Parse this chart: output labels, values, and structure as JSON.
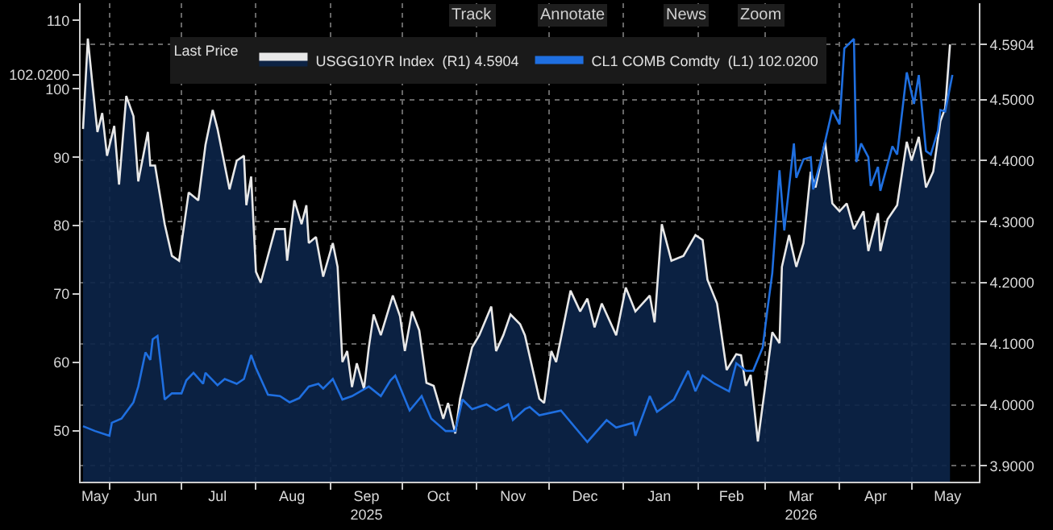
{
  "chart_data": {
    "type": "line",
    "legend_title": "Last Price",
    "legend": "top",
    "grid": true,
    "annotations": [
      "Track",
      "Annotate",
      "News",
      "Zoom"
    ],
    "xlim": [
      "2025-05-20",
      "2026-05-29"
    ],
    "xticks": [
      {
        "value": "2025-05-26",
        "label": "May"
      },
      {
        "value": "2025-06-16",
        "label": "Jun"
      },
      {
        "value": "2025-07-16",
        "label": "Jul"
      },
      {
        "value": "2025-08-16",
        "label": "Aug"
      },
      {
        "value": "2025-09-16",
        "label": "Sep\n2025"
      },
      {
        "value": "2025-10-16",
        "label": "Oct"
      },
      {
        "value": "2025-11-16",
        "label": "Nov"
      },
      {
        "value": "2025-12-16",
        "label": "Dec"
      },
      {
        "value": "2026-01-16",
        "label": "Jan"
      },
      {
        "value": "2026-02-15",
        "label": "Feb"
      },
      {
        "value": "2026-03-16",
        "label": "Mar\n2026"
      },
      {
        "value": "2026-04-16",
        "label": "Apr"
      },
      {
        "value": "2026-05-16",
        "label": "May"
      }
    ],
    "ylim": [
      42.6,
      112.5
    ],
    "yticks": [
      50,
      60,
      70,
      80,
      90,
      100,
      {
        "value": 102.02,
        "label": "102.0200"
      },
      110
    ],
    "y2lim": [
      3.874,
      4.658
    ],
    "y2ticks": [
      {
        "value": 3.9,
        "label": "3.9000"
      },
      {
        "value": 4.0,
        "label": "4.0000"
      },
      {
        "value": 4.1,
        "label": "4.1000"
      },
      {
        "value": 4.2,
        "label": "4.2000"
      },
      {
        "value": 4.3,
        "label": "4.3000"
      },
      {
        "value": 4.4,
        "label": "4.4000"
      },
      {
        "value": 4.5,
        "label": "4.5000"
      },
      {
        "value": 4.5904,
        "label": "4.5904"
      }
    ],
    "series": [
      {
        "name": "USGG10YR Index  (R1) 4.5904",
        "type": "area",
        "axis": "y2",
        "color": "#e8e8e8",
        "x": [
          "2025-05-21",
          "2025-05-23",
          "2025-05-25",
          "2025-05-27",
          "2025-05-29",
          "2025-05-31",
          "2025-06-03",
          "2025-06-05",
          "2025-06-08",
          "2025-06-11",
          "2025-06-13",
          "2025-06-17",
          "2025-06-18",
          "2025-06-20",
          "2025-06-24",
          "2025-06-27",
          "2025-06-30",
          "2025-07-04",
          "2025-07-08",
          "2025-07-11",
          "2025-07-14",
          "2025-07-16",
          "2025-07-21",
          "2025-07-24",
          "2025-07-27",
          "2025-07-28",
          "2025-07-30",
          "2025-08-01",
          "2025-08-03",
          "2025-08-09",
          "2025-08-13",
          "2025-08-14",
          "2025-08-17",
          "2025-08-20",
          "2025-08-22",
          "2025-08-23",
          "2025-08-26",
          "2025-08-29",
          "2025-09-02",
          "2025-09-04",
          "2025-09-06",
          "2025-09-08",
          "2025-09-10",
          "2025-09-12",
          "2025-09-15",
          "2025-09-17",
          "2025-09-19",
          "2025-09-22",
          "2025-09-27",
          "2025-09-30",
          "2025-10-02",
          "2025-10-05",
          "2025-10-08",
          "2025-10-11",
          "2025-10-14",
          "2025-10-18",
          "2025-10-20",
          "2025-10-23",
          "2025-10-25",
          "2025-10-30",
          "2025-11-02",
          "2025-11-07",
          "2025-11-09",
          "2025-11-12",
          "2025-11-15",
          "2025-11-19",
          "2025-11-21",
          "2025-11-27",
          "2025-11-29",
          "2025-12-02",
          "2025-12-04",
          "2025-12-10",
          "2025-12-14",
          "2025-12-17",
          "2025-12-20",
          "2025-12-23",
          "2025-12-29",
          "2026-01-02",
          "2026-01-06",
          "2026-01-12",
          "2026-01-14",
          "2026-01-17",
          "2026-01-21",
          "2026-01-26",
          "2026-01-31",
          "2026-02-03",
          "2026-02-05",
          "2026-02-09",
          "2026-02-13",
          "2026-02-17",
          "2026-02-19",
          "2026-02-21",
          "2026-02-23",
          "2026-02-26",
          "2026-03-01",
          "2026-03-04",
          "2026-03-07",
          "2026-03-08",
          "2026-03-11",
          "2026-03-14",
          "2026-03-17",
          "2026-03-20",
          "2026-03-22",
          "2026-03-26",
          "2026-03-29",
          "2026-04-01",
          "2026-04-04",
          "2026-04-07",
          "2026-04-11",
          "2026-04-13",
          "2026-04-17",
          "2026-04-18",
          "2026-04-21",
          "2026-04-25",
          "2026-04-29",
          "2026-05-01",
          "2026-05-04",
          "2026-05-07",
          "2026-05-10",
          "2026-05-13",
          "2026-05-15",
          "2026-05-17"
        ],
        "values": [
          4.452,
          4.6,
          4.522,
          4.447,
          4.478,
          4.408,
          4.457,
          4.361,
          4.506,
          4.473,
          4.366,
          4.447,
          4.392,
          4.392,
          4.296,
          4.244,
          4.236,
          4.348,
          4.335,
          4.426,
          4.483,
          4.452,
          4.353,
          4.4,
          4.408,
          4.327,
          4.374,
          4.218,
          4.2,
          4.288,
          4.288,
          4.236,
          4.335,
          4.296,
          4.327,
          4.265,
          4.275,
          4.21,
          4.265,
          4.226,
          4.07,
          4.088,
          4.029,
          4.068,
          4.026,
          4.094,
          4.148,
          4.114,
          4.179,
          4.145,
          4.088,
          4.153,
          4.122,
          4.036,
          4.031,
          3.977,
          4.003,
          3.953,
          4.01,
          4.094,
          4.114,
          4.161,
          4.088,
          4.114,
          4.148,
          4.132,
          4.114,
          4.01,
          4.003,
          4.088,
          4.07,
          4.187,
          4.153,
          4.174,
          4.127,
          4.166,
          4.114,
          4.192,
          4.153,
          4.179,
          4.135,
          4.296,
          4.236,
          4.244,
          4.278,
          4.27,
          4.205,
          4.166,
          4.057,
          4.083,
          4.081,
          4.031,
          4.049,
          3.94,
          4.029,
          4.119,
          4.101,
          4.226,
          4.278,
          4.226,
          4.265,
          4.382,
          4.356,
          4.431,
          4.33,
          4.317,
          4.33,
          4.288,
          4.317,
          4.252,
          4.314,
          4.252,
          4.304,
          4.327,
          4.431,
          4.4,
          4.439,
          4.356,
          4.382,
          4.465,
          4.486,
          4.5904
        ]
      },
      {
        "name": "CL1 COMB Comdty  (L1) 102.0200",
        "axis": "y",
        "color": "#1f6fe0",
        "x": [
          "2025-05-21",
          "2025-05-26",
          "2025-06-01",
          "2025-06-02",
          "2025-06-06",
          "2025-06-11",
          "2025-06-13",
          "2025-06-16",
          "2025-06-18",
          "2025-06-19",
          "2025-06-21",
          "2025-06-24",
          "2025-06-27",
          "2025-07-01",
          "2025-07-03",
          "2025-07-06",
          "2025-07-10",
          "2025-07-11",
          "2025-07-16",
          "2025-07-19",
          "2025-07-24",
          "2025-07-27",
          "2025-07-30",
          "2025-08-01",
          "2025-08-06",
          "2025-08-11",
          "2025-08-15",
          "2025-08-19",
          "2025-08-23",
          "2025-08-27",
          "2025-08-29",
          "2025-09-02",
          "2025-09-06",
          "2025-09-10",
          "2025-09-17",
          "2025-09-22",
          "2025-09-26",
          "2025-09-28",
          "2025-10-04",
          "2025-10-09",
          "2025-10-13",
          "2025-10-19",
          "2025-10-23",
          "2025-10-26",
          "2025-10-30",
          "2025-11-05",
          "2025-11-09",
          "2025-11-14",
          "2025-11-16",
          "2025-11-21",
          "2025-11-23",
          "2025-11-27",
          "2025-12-06",
          "2025-12-17",
          "2025-12-25",
          "2025-12-29",
          "2026-01-05",
          "2026-01-06",
          "2026-01-12",
          "2026-01-15",
          "2026-01-22",
          "2026-01-28",
          "2026-01-31",
          "2026-02-03",
          "2026-02-08",
          "2026-02-14",
          "2026-02-17",
          "2026-02-21",
          "2026-02-24",
          "2026-02-28",
          "2026-03-02",
          "2026-03-04",
          "2026-03-07",
          "2026-03-09",
          "2026-03-13",
          "2026-03-14",
          "2026-03-17",
          "2026-03-20",
          "2026-03-21",
          "2026-03-24",
          "2026-03-26",
          "2026-03-29",
          "2026-04-01",
          "2026-04-03",
          "2026-04-07",
          "2026-04-08",
          "2026-04-10",
          "2026-04-13",
          "2026-04-14",
          "2026-04-17",
          "2026-04-18",
          "2026-04-23",
          "2026-04-25",
          "2026-04-29",
          "2026-05-02",
          "2026-05-04",
          "2026-05-07",
          "2026-05-09",
          "2026-05-12",
          "2026-05-13",
          "2026-05-15",
          "2026-05-18"
        ],
        "values": [
          50.7,
          50.0,
          49.3,
          51.2,
          51.8,
          54.2,
          56.5,
          61.5,
          60.4,
          63.4,
          63.9,
          54.6,
          55.5,
          55.5,
          57.4,
          58.5,
          56.9,
          58.5,
          56.7,
          57.6,
          56.9,
          57.6,
          61.1,
          59.2,
          55.3,
          55.1,
          54.2,
          54.8,
          56.5,
          56.9,
          56.2,
          57.6,
          54.6,
          55.1,
          56.5,
          55.1,
          57.4,
          58.1,
          53.0,
          55.1,
          51.8,
          50.0,
          50.0,
          54.6,
          53.2,
          53.9,
          53.0,
          53.9,
          51.6,
          53.2,
          53.5,
          52.3,
          53.0,
          48.4,
          51.6,
          50.5,
          51.2,
          49.3,
          55.1,
          52.8,
          54.6,
          58.8,
          55.8,
          58.1,
          56.9,
          55.8,
          59.9,
          58.8,
          58.8,
          62.2,
          67.8,
          73.1,
          88.1,
          79.3,
          92.0,
          87.0,
          89.7,
          90.0,
          85.3,
          89.3,
          92.3,
          96.9,
          94.8,
          105.9,
          107.3,
          89.3,
          92.0,
          90.0,
          85.8,
          88.6,
          85.1,
          91.6,
          90.4,
          102.4,
          97.8,
          102.0,
          90.9,
          90.4,
          93.9,
          96.9,
          96.7,
          102.02
        ]
      }
    ]
  }
}
